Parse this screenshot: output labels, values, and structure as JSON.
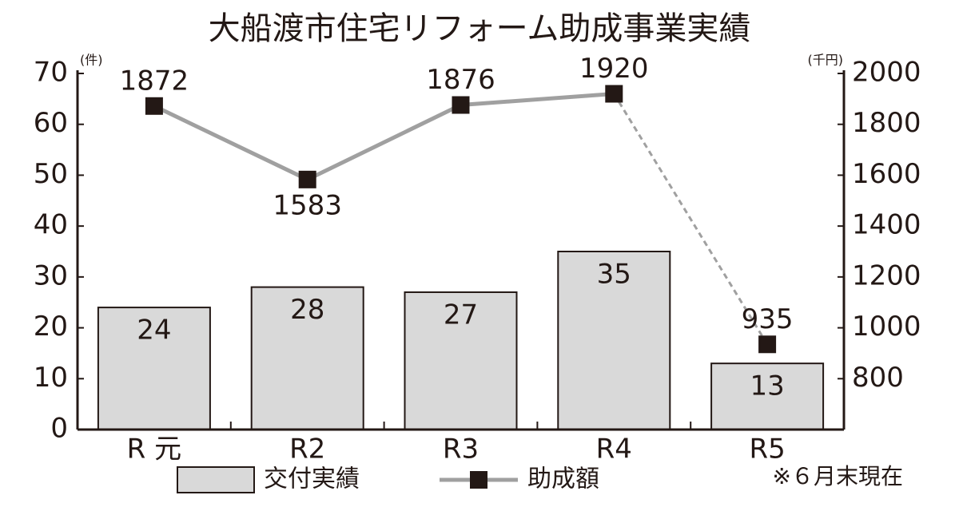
{
  "chart_data": {
    "type": "bar-line",
    "title": "大船渡市住宅リフォーム助成事業実績",
    "y_unit": "(件)",
    "y2_unit": "(千円)",
    "categories": [
      "R 元",
      "R2",
      "R3",
      "R4",
      "R5"
    ],
    "series": [
      {
        "name": "交付実績",
        "type": "bar",
        "color": "#d9d9d9",
        "values": [
          24,
          28,
          27,
          35,
          13
        ]
      },
      {
        "name": "助成額",
        "type": "line",
        "axis": "y2",
        "color": "#a0a0a0",
        "marker_color": "#231815",
        "last_segment_dashed": true,
        "values": [
          1872,
          1583,
          1876,
          1920,
          935
        ]
      }
    ],
    "ylim": [
      0,
      70
    ],
    "yticks": [
      0,
      10,
      20,
      30,
      40,
      50,
      60,
      70
    ],
    "y2lim": [
      600,
      2000
    ],
    "y2ticks": [
      800,
      1000,
      1200,
      1400,
      1600,
      1800,
      2000
    ],
    "note": "※６月末現在"
  }
}
